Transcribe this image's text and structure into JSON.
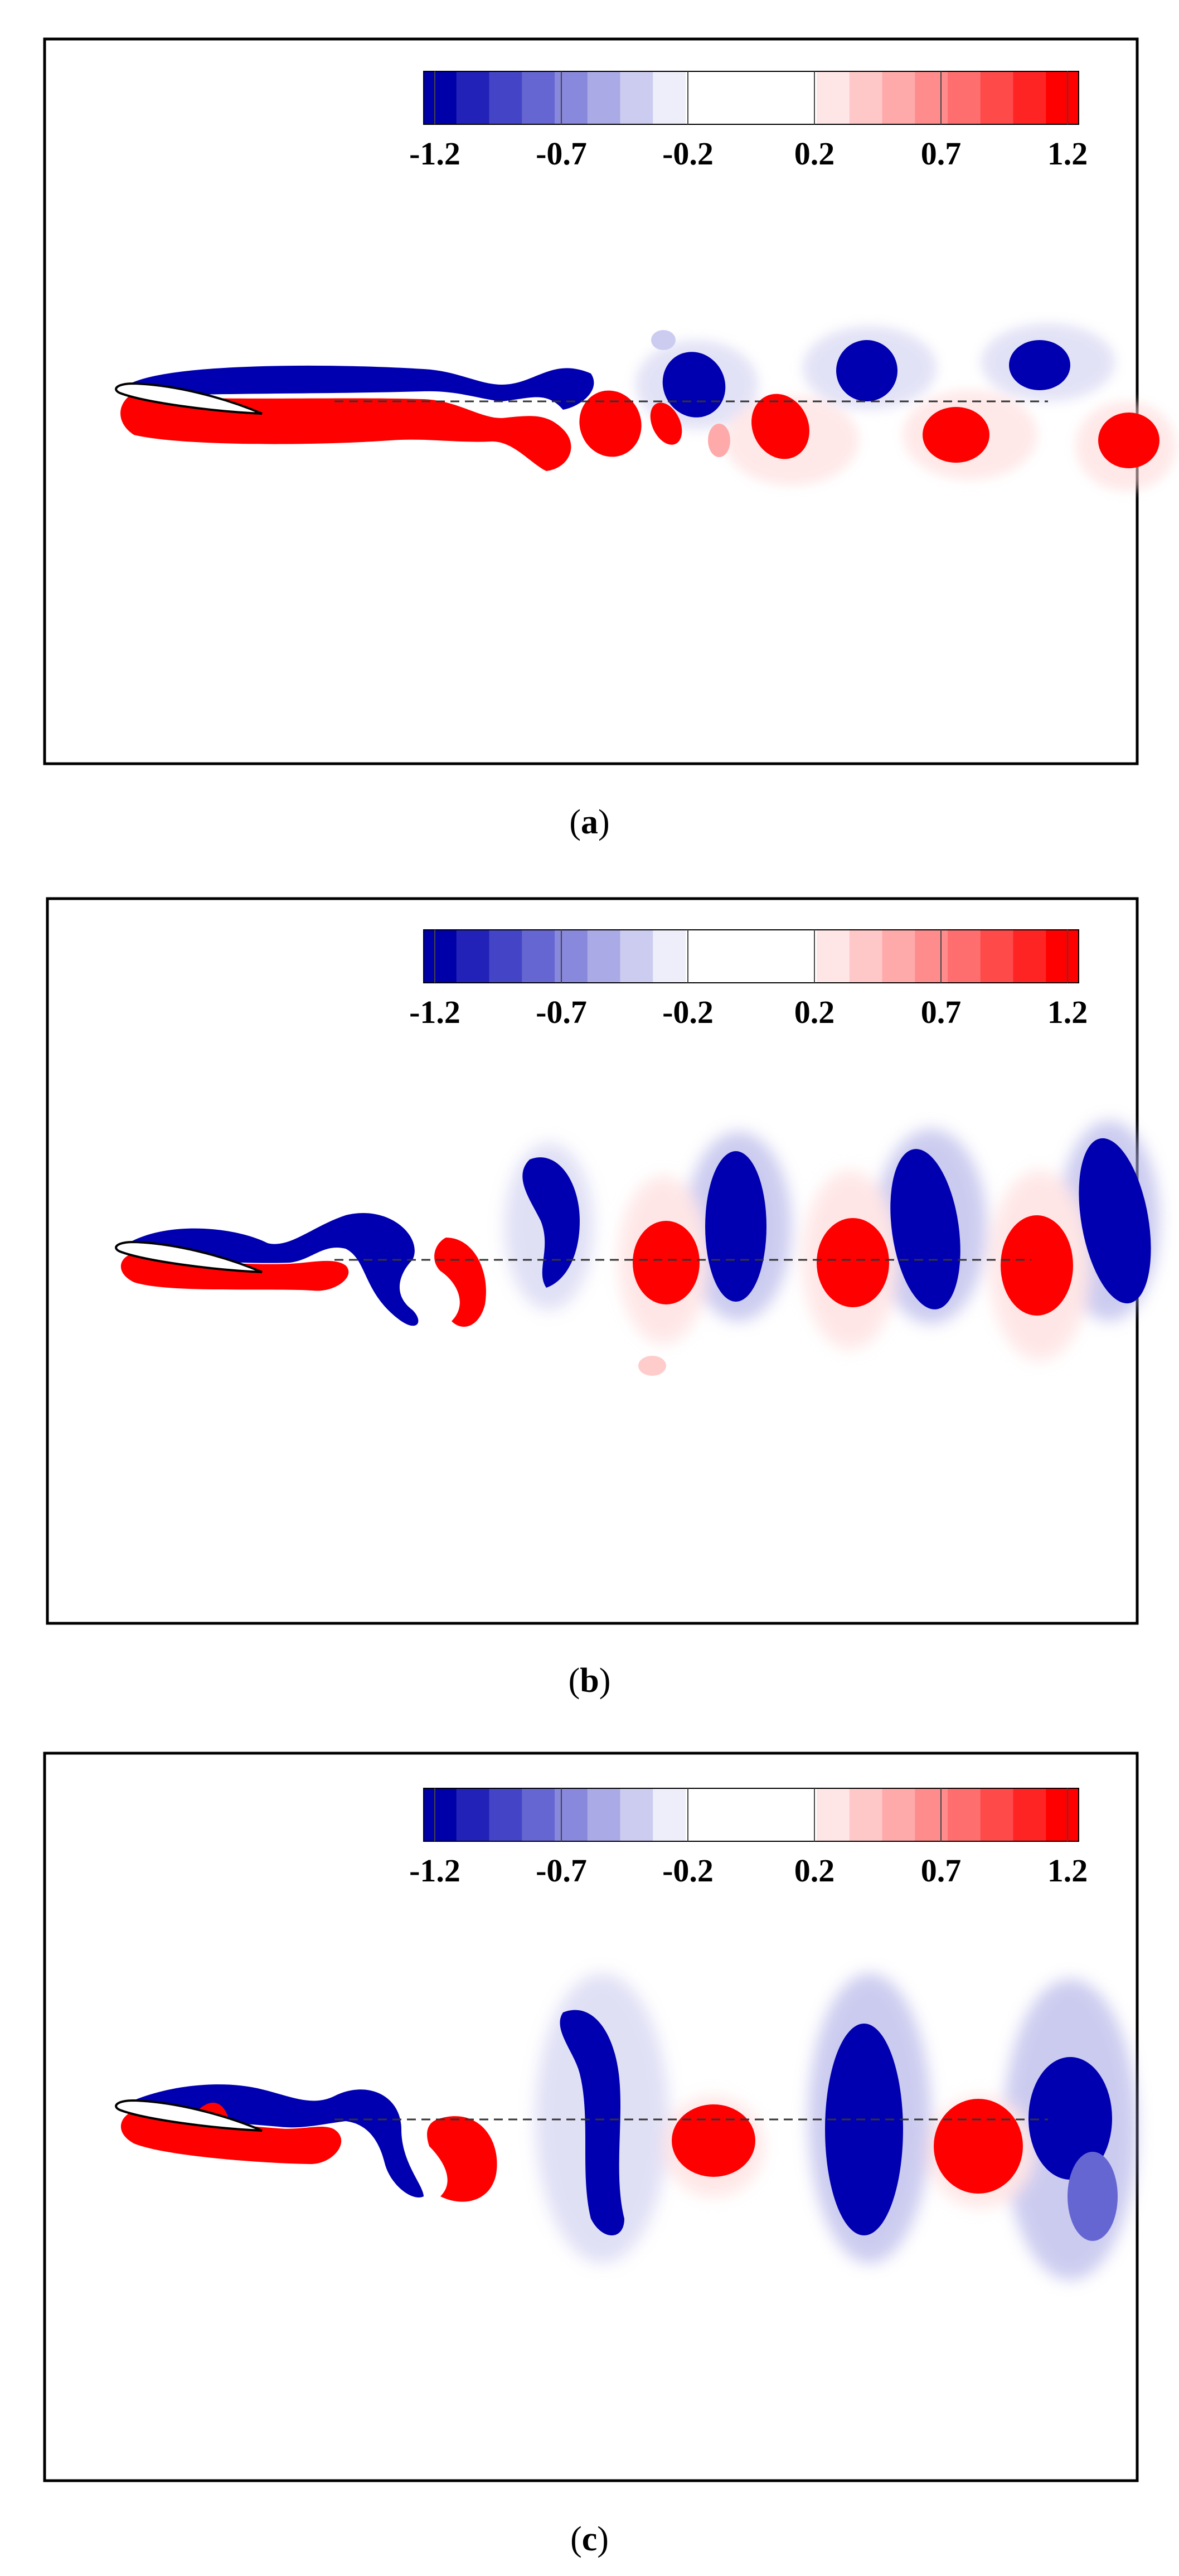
{
  "figure": {
    "colorbar": {
      "tick_labels": [
        "-1.2",
        "-0.7",
        "-0.2",
        "0.2",
        "0.7",
        "1.2"
      ],
      "levels": [
        "#0000a8",
        "#2222b8",
        "#4444c6",
        "#6666d2",
        "#8888dc",
        "#aaaae6",
        "#ccccf0",
        "#eeeefa",
        "#ffffff",
        "#ffffff",
        "#ffffff",
        "#ffffff",
        "#ffe6e6",
        "#ffc8c8",
        "#ffaaaa",
        "#ff8c8c",
        "#ff6e6e",
        "#ff4a4a",
        "#ff2424",
        "#ff0000"
      ]
    },
    "colors": {
      "negative": "#0000b0",
      "positive": "#ff0000"
    },
    "panels": [
      {
        "caption_open": "(",
        "caption_letter": "a",
        "caption_close": ")"
      },
      {
        "caption_open": "(",
        "caption_letter": "b",
        "caption_close": ")"
      },
      {
        "caption_open": "(",
        "caption_letter": "c",
        "caption_close": ")"
      }
    ]
  }
}
